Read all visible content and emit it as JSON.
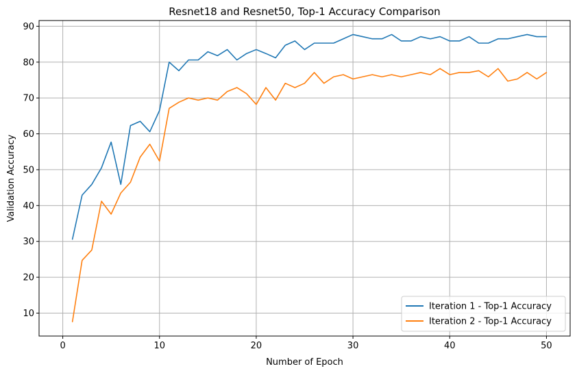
{
  "chart_data": {
    "type": "line",
    "title": "Resnet18 and Resnet50, Top-1 Accuracy Comparison",
    "xlabel": "Number of Epoch",
    "ylabel": "Validation Accuracy",
    "xlim": [
      -2.45,
      52.45
    ],
    "ylim": [
      3.6,
      91.6
    ],
    "xticks": [
      0,
      10,
      20,
      30,
      40,
      50
    ],
    "yticks": [
      10,
      20,
      30,
      40,
      50,
      60,
      70,
      80,
      90
    ],
    "grid": true,
    "legend_position": "lower-right",
    "x": [
      1,
      2,
      3,
      4,
      5,
      6,
      7,
      8,
      9,
      10,
      11,
      12,
      13,
      14,
      15,
      16,
      17,
      18,
      19,
      20,
      21,
      22,
      23,
      24,
      25,
      26,
      27,
      28,
      29,
      30,
      31,
      32,
      33,
      34,
      35,
      36,
      37,
      38,
      39,
      40,
      41,
      42,
      43,
      44,
      45,
      46,
      47,
      48,
      49,
      50
    ],
    "series": [
      {
        "name": "Iteration 1 - Top-1 Accuracy",
        "color": "#1f77b4",
        "values": [
          30.6,
          42.9,
          45.9,
          50.5,
          57.7,
          45.9,
          62.3,
          63.5,
          60.6,
          66.5,
          80.0,
          77.6,
          80.6,
          80.6,
          82.9,
          81.8,
          83.5,
          80.6,
          82.4,
          83.5,
          82.4,
          81.2,
          84.7,
          85.9,
          83.5,
          85.3,
          85.3,
          85.3,
          86.5,
          87.7,
          87.1,
          86.5,
          86.5,
          87.7,
          85.9,
          85.9,
          87.1,
          86.5,
          87.1,
          85.9,
          85.9,
          87.1,
          85.3,
          85.3,
          86.5,
          86.5,
          87.1,
          87.7,
          87.1,
          87.1
        ]
      },
      {
        "name": "Iteration 2 - Top-1 Accuracy",
        "color": "#ff7f0e",
        "values": [
          7.6,
          24.7,
          27.6,
          41.2,
          37.6,
          43.5,
          46.5,
          53.5,
          57.1,
          52.4,
          67.1,
          68.8,
          70.0,
          69.4,
          70.0,
          69.4,
          71.8,
          72.9,
          71.2,
          68.2,
          72.9,
          69.4,
          74.1,
          72.9,
          74.1,
          77.1,
          74.1,
          75.9,
          76.5,
          75.3,
          75.9,
          76.5,
          75.9,
          76.5,
          75.9,
          76.5,
          77.1,
          76.5,
          78.2,
          76.5,
          77.1,
          77.1,
          77.6,
          75.9,
          78.2,
          74.7,
          75.3,
          77.1,
          75.3,
          77.1
        ]
      }
    ]
  }
}
